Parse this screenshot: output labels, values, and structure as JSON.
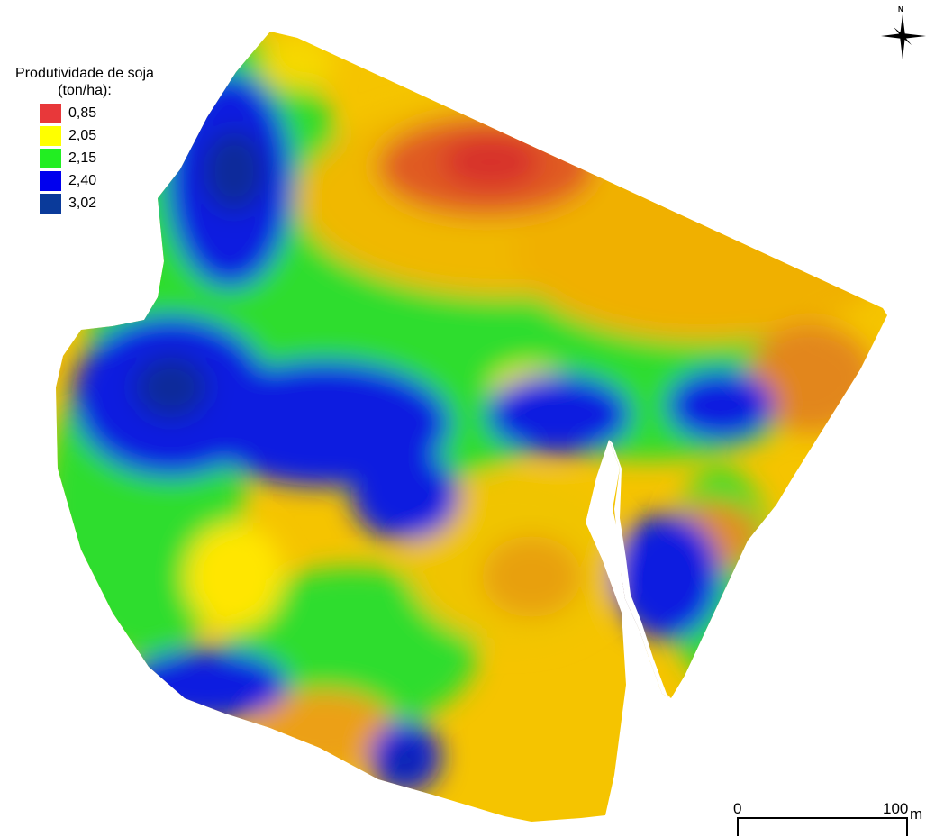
{
  "legend": {
    "title": "Produtividade de soja (ton/ha):",
    "items": [
      {
        "label": "0,85",
        "color": "#e8383a"
      },
      {
        "label": "2,05",
        "color": "#ffff00"
      },
      {
        "label": "2,15",
        "color": "#22ee22"
      },
      {
        "label": "2,40",
        "color": "#0000ee"
      },
      {
        "label": "3,02",
        "color": "#0a3a9a"
      }
    ]
  },
  "scale_bar": {
    "start": "0",
    "end": "100",
    "unit": "m"
  },
  "north_arrow": {
    "label": "N",
    "icon": "compass-star-icon"
  }
}
